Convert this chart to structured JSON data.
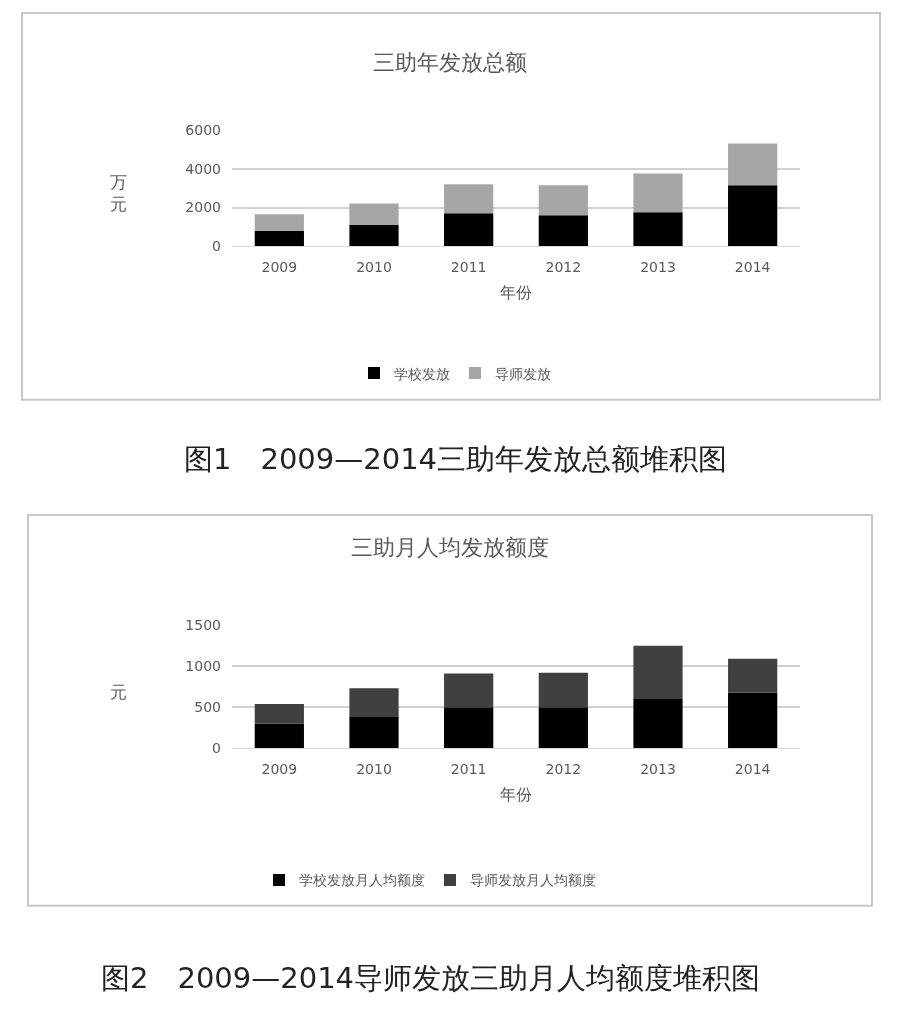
{
  "chart_data": [
    {
      "type": "bar",
      "title": "三助年发放总额",
      "categories": [
        "2009",
        "2010",
        "2011",
        "2012",
        "2013",
        "2014"
      ],
      "series": [
        {
          "name": "学校发放",
          "color": "#000000",
          "values": [
            800,
            1100,
            1700,
            1600,
            1750,
            3150
          ]
        },
        {
          "name": "导师发放",
          "color": "#a6a6a6",
          "values": [
            850,
            1100,
            1500,
            1550,
            2000,
            2150
          ]
        }
      ],
      "stacked": true,
      "xlabel": "年份",
      "ylabel": "万元",
      "ylim": [
        0,
        6000
      ],
      "yticks": [
        0,
        2000,
        4000,
        6000
      ],
      "grid": "y",
      "legend": "bottom",
      "annotations": [
        "图1　2009—2014三助年发放总额堆积图"
      ]
    },
    {
      "type": "bar",
      "title": "三助月人均发放额度",
      "categories": [
        "2009",
        "2010",
        "2011",
        "2012",
        "2013",
        "2014"
      ],
      "series": [
        {
          "name": "学校发放月人均额度",
          "color": "#000000",
          "values": [
            300,
            390,
            500,
            500,
            610,
            680
          ]
        },
        {
          "name": "导师发放月人均额度",
          "color": "#404040",
          "values": [
            240,
            340,
            410,
            420,
            640,
            410
          ]
        }
      ],
      "stacked": true,
      "xlabel": "年份",
      "ylabel": "元",
      "ylim": [
        0,
        1500
      ],
      "yticks": [
        0,
        500,
        1000,
        1500
      ],
      "grid": "y",
      "legend": "bottom",
      "annotations": [
        "图2　2009—2014导师发放三助月人均额度堆积图"
      ]
    }
  ]
}
